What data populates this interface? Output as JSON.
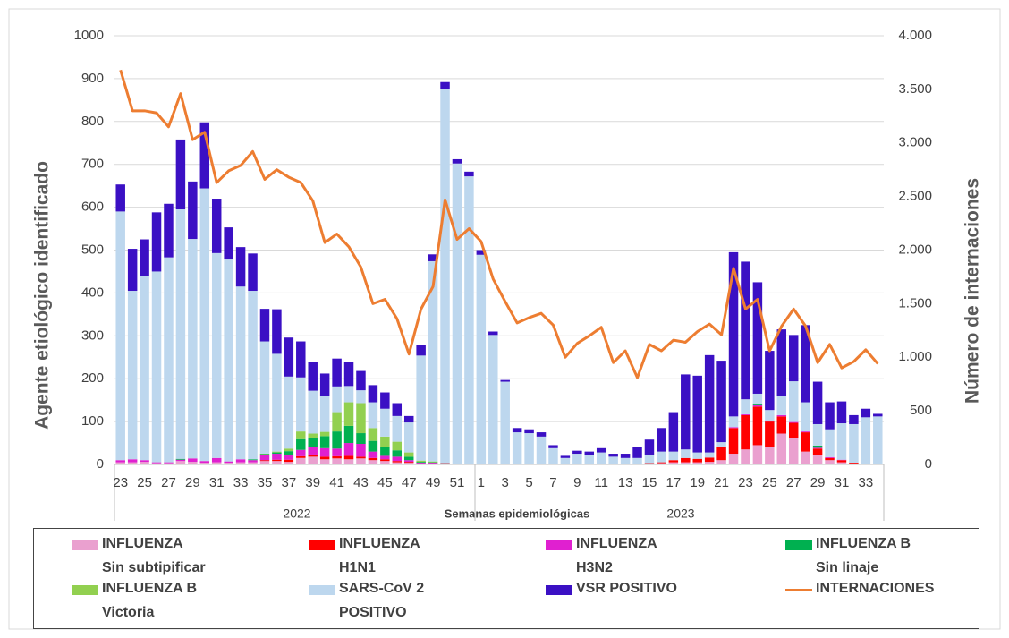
{
  "chart_data": {
    "type": "bar",
    "y_label": "Agente etiológico identificado",
    "y2_label": "Número de internaciones",
    "x_label": "Semanas epidemiológicas",
    "x_group_labels": [
      "2022",
      "2023"
    ],
    "categories": [
      "23",
      null,
      "25",
      null,
      "27",
      null,
      "29",
      null,
      "31",
      null,
      "33",
      null,
      "35",
      null,
      "37",
      null,
      "39",
      null,
      "41",
      null,
      "43",
      null,
      "45",
      null,
      "47",
      null,
      "49",
      null,
      "51",
      null,
      "1",
      null,
      "3",
      null,
      "5",
      null,
      "7",
      null,
      "9",
      null,
      "11",
      null,
      "13",
      null,
      "15",
      null,
      "17",
      null,
      "19",
      null,
      "21",
      null,
      "23",
      null,
      "25",
      null,
      "27",
      null,
      "29",
      null,
      "31",
      null,
      "33",
      null
    ],
    "ylim": [
      0,
      1000
    ],
    "yticks": [
      0,
      100,
      200,
      300,
      400,
      500,
      600,
      700,
      800,
      900,
      1000
    ],
    "y2lim": [
      0,
      4000
    ],
    "y2ticks": [
      0,
      500,
      {
        "value": 1000,
        "label": "1.000"
      },
      {
        "value": 1500,
        "label": "1.500"
      },
      {
        "value": 2000,
        "label": "2.000"
      },
      {
        "value": 2500,
        "label": "2.500"
      },
      {
        "value": 3000,
        "label": "3.000"
      },
      {
        "value": 3500,
        "label": "3.500"
      },
      {
        "value": 4000,
        "label": "4.000"
      }
    ],
    "grid": true,
    "stacked": true,
    "series": [
      {
        "name": "INFLUENZA\nSin subtipificar",
        "type": "bar",
        "color": "#eaa0cf",
        "values": [
          5,
          5,
          6,
          3,
          3,
          8,
          6,
          4,
          5,
          4,
          5,
          5,
          8,
          8,
          6,
          15,
          18,
          12,
          14,
          12,
          14,
          10,
          8,
          5,
          4,
          2,
          2,
          1,
          1,
          1,
          1,
          1,
          1,
          0,
          0,
          0,
          0,
          0,
          0,
          0,
          0,
          0,
          0,
          0,
          2,
          3,
          5,
          5,
          5,
          6,
          10,
          25,
          35,
          45,
          40,
          72,
          62,
          30,
          22,
          10,
          5,
          2,
          1,
          0
        ]
      },
      {
        "name": "INFLUENZA\nH1N1",
        "type": "bar",
        "color": "#ff0000",
        "values": [
          0,
          0,
          0,
          0,
          0,
          0,
          0,
          0,
          0,
          0,
          0,
          0,
          2,
          3,
          5,
          4,
          5,
          6,
          5,
          8,
          4,
          5,
          4,
          3,
          2,
          0,
          0,
          0,
          0,
          0,
          0,
          0,
          0,
          0,
          0,
          0,
          0,
          0,
          0,
          0,
          0,
          0,
          0,
          0,
          1,
          2,
          5,
          10,
          8,
          10,
          30,
          60,
          80,
          90,
          60,
          40,
          35,
          45,
          15,
          5,
          5,
          2,
          1,
          0
        ]
      },
      {
        "name": "INFLUENZA\nH3N2",
        "type": "bar",
        "color": "#e020d0",
        "values": [
          5,
          7,
          4,
          2,
          2,
          3,
          8,
          4,
          10,
          3,
          7,
          5,
          12,
          14,
          12,
          15,
          17,
          20,
          18,
          30,
          30,
          15,
          8,
          10,
          4,
          2,
          2,
          2,
          1,
          1,
          0,
          1,
          0,
          0,
          0,
          0,
          0,
          0,
          0,
          0,
          0,
          0,
          0,
          0,
          0,
          0,
          0,
          0,
          0,
          0,
          2,
          2,
          2,
          3,
          2,
          3,
          2,
          2,
          2,
          2,
          1,
          0,
          0,
          0
        ]
      },
      {
        "name": "INFLUENZA B\nSin linaje",
        "type": "bar",
        "color": "#00b050",
        "values": [
          0,
          0,
          0,
          0,
          0,
          2,
          0,
          0,
          0,
          0,
          0,
          2,
          2,
          3,
          8,
          25,
          22,
          28,
          40,
          40,
          25,
          25,
          20,
          15,
          8,
          2,
          1,
          0,
          0,
          0,
          0,
          0,
          0,
          0,
          0,
          0,
          0,
          0,
          0,
          0,
          0,
          0,
          0,
          0,
          0,
          0,
          0,
          0,
          0,
          0,
          0,
          0,
          0,
          2,
          0,
          0,
          0,
          0,
          5,
          0,
          0,
          0,
          0,
          0
        ]
      },
      {
        "name": "INFLUENZA B\nVictoria",
        "type": "bar",
        "color": "#92d050",
        "values": [
          0,
          0,
          0,
          0,
          0,
          0,
          0,
          0,
          0,
          0,
          0,
          0,
          1,
          2,
          6,
          18,
          10,
          10,
          45,
          55,
          70,
          30,
          25,
          20,
          10,
          3,
          2,
          1,
          0,
          0,
          0,
          0,
          0,
          0,
          0,
          0,
          0,
          0,
          0,
          0,
          0,
          0,
          0,
          0,
          0,
          0,
          0,
          0,
          0,
          0,
          0,
          0,
          0,
          0,
          0,
          0,
          0,
          0,
          0,
          0,
          0,
          0,
          0,
          0
        ]
      },
      {
        "name": "SARS-CoV 2\nPOSITIVO",
        "type": "bar",
        "color": "#bdd7ee",
        "values": [
          580,
          393,
          430,
          445,
          478,
          582,
          512,
          636,
          478,
          471,
          403,
          393,
          262,
          228,
          168,
          126,
          100,
          84,
          60,
          38,
          30,
          60,
          65,
          60,
          70,
          245,
          467,
          871,
          700,
          670,
          488,
          300,
          192,
          75,
          73,
          65,
          38,
          15,
          25,
          22,
          28,
          18,
          15,
          15,
          20,
          25,
          20,
          20,
          15,
          12,
          10,
          25,
          35,
          25,
          25,
          45,
          95,
          68,
          50,
          65,
          85,
          90,
          108,
          112
        ]
      },
      {
        "name": "VSR POSITIVO",
        "type": "bar",
        "color": "#3b10c4",
        "values": [
          63,
          98,
          85,
          138,
          125,
          163,
          134,
          154,
          127,
          75,
          92,
          87,
          76,
          104,
          91,
          84,
          68,
          52,
          65,
          57,
          45,
          40,
          38,
          30,
          15,
          24,
          16,
          17,
          10,
          11,
          11,
          8,
          4,
          10,
          9,
          10,
          7,
          5,
          7,
          8,
          10,
          7,
          10,
          25,
          35,
          55,
          92,
          175,
          179,
          227,
          190,
          383,
          321,
          260,
          138,
          155,
          108,
          180,
          99,
          63,
          51,
          21,
          20,
          6
        ]
      },
      {
        "name": "INTERNACIONES",
        "type": "line",
        "axis": "y2",
        "color": "#ed7d31",
        "values": [
          3680,
          3300,
          3300,
          3280,
          3150,
          3460,
          3030,
          3100,
          2630,
          2740,
          2790,
          2920,
          2660,
          2750,
          2680,
          2630,
          2460,
          2070,
          2150,
          2030,
          1840,
          1500,
          1540,
          1360,
          1030,
          1450,
          1660,
          2470,
          2100,
          2200,
          2080,
          1730,
          1520,
          1320,
          1370,
          1410,
          1300,
          1000,
          1130,
          1200,
          1280,
          950,
          1060,
          810,
          1120,
          1060,
          1160,
          1140,
          1240,
          1310,
          1210,
          1830,
          1450,
          1540,
          1060,
          1290,
          1450,
          1290,
          950,
          1120,
          900,
          960,
          1070,
          940
        ]
      }
    ]
  }
}
